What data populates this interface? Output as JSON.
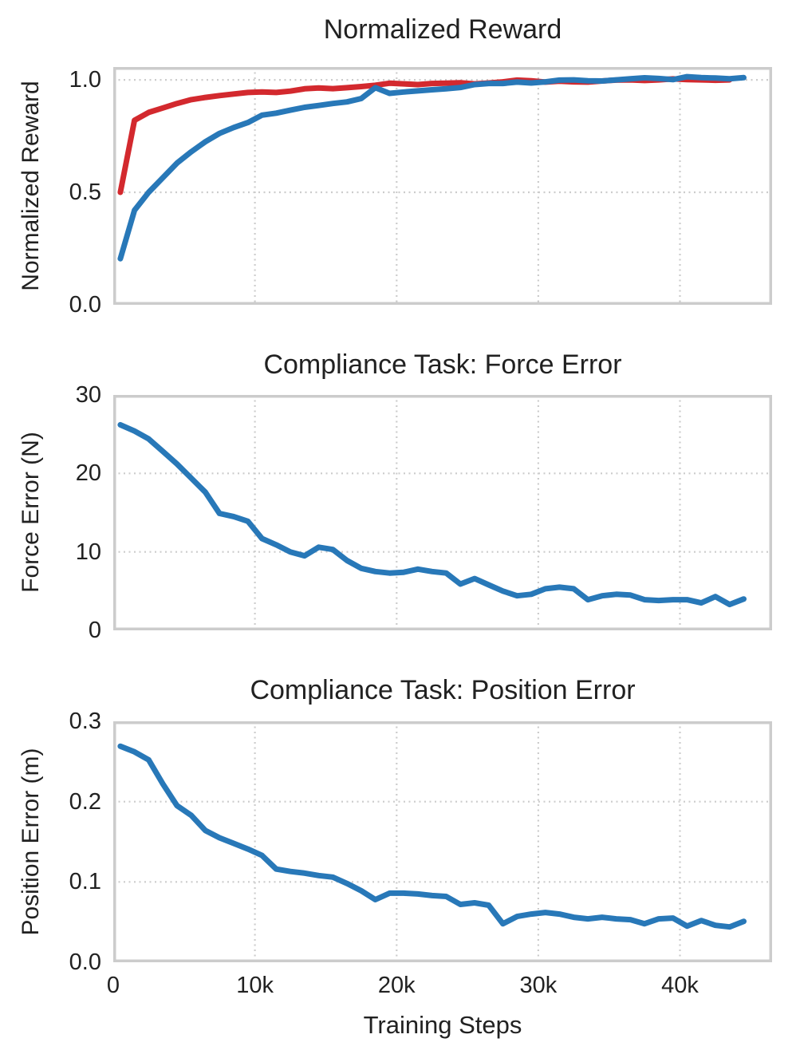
{
  "page": {
    "background": "#ffffff",
    "text_color": "#212121"
  },
  "style": {
    "grid_color": "#cccccc",
    "spine_color": "#cccccc",
    "blue": "#2878b8",
    "red": "#d3292e",
    "line_width": 7
  },
  "x_axis": {
    "label": "Training Steps",
    "xlim": [
      0,
      46500
    ],
    "ticks": [
      {
        "value": 0,
        "label": "0"
      },
      {
        "value": 10000,
        "label": "10k"
      },
      {
        "value": 20000,
        "label": "20k"
      },
      {
        "value": 30000,
        "label": "30k"
      },
      {
        "value": 40000,
        "label": "40k"
      }
    ]
  },
  "chart_data": [
    {
      "type": "line",
      "title": "Normalized Reward",
      "ylabel": "Normalized Reward",
      "xlabel": "",
      "ylim": [
        0,
        1.057
      ],
      "grid": true,
      "legend": "none",
      "yticks": [
        {
          "value": 0.0,
          "label": "0.0"
        },
        {
          "value": 0.5,
          "label": "0.5"
        },
        {
          "value": 1.0,
          "label": "1.0"
        }
      ],
      "series": [
        {
          "name": "red-line",
          "color_key": "red",
          "x_start": 500,
          "x_step": 1000,
          "values": [
            0.5,
            0.82,
            0.855,
            0.875,
            0.895,
            0.912,
            0.922,
            0.93,
            0.937,
            0.944,
            0.946,
            0.944,
            0.95,
            0.96,
            0.964,
            0.961,
            0.965,
            0.97,
            0.976,
            0.985,
            0.982,
            0.979,
            0.984,
            0.985,
            0.987,
            0.982,
            0.986,
            0.991,
            0.999,
            0.996,
            0.99,
            0.994,
            0.991,
            0.99,
            0.995,
            0.999,
            1.0,
            0.997,
            1.0,
            1.004,
            1.001,
            1.0,
            0.998,
            1.0
          ]
        },
        {
          "name": "blue-line",
          "color_key": "blue",
          "x_start": 500,
          "x_step": 1000,
          "values": [
            0.205,
            0.42,
            0.5,
            0.565,
            0.63,
            0.68,
            0.725,
            0.762,
            0.788,
            0.81,
            0.843,
            0.852,
            0.865,
            0.878,
            0.886,
            0.895,
            0.902,
            0.917,
            0.965,
            0.94,
            0.946,
            0.951,
            0.956,
            0.96,
            0.966,
            0.979,
            0.984,
            0.984,
            0.99,
            0.986,
            0.991,
            0.999,
            1.0,
            0.996,
            0.995,
            1.0,
            1.005,
            1.009,
            1.006,
            1.001,
            1.014,
            1.01,
            1.008,
            1.005,
            1.01
          ]
        }
      ]
    },
    {
      "type": "line",
      "title": "Compliance Task: Force Error",
      "ylabel": "Force Error (N)",
      "xlabel": "",
      "ylim": [
        0,
        30
      ],
      "grid": true,
      "legend": "none",
      "yticks": [
        {
          "value": 0,
          "label": "0"
        },
        {
          "value": 10,
          "label": "10"
        },
        {
          "value": 20,
          "label": "20"
        },
        {
          "value": 30,
          "label": "30"
        }
      ],
      "series": [
        {
          "name": "blue-line",
          "color_key": "blue",
          "x_start": 500,
          "x_step": 1000,
          "values": [
            26.2,
            25.4,
            24.4,
            22.8,
            21.2,
            19.4,
            17.6,
            14.9,
            14.5,
            13.9,
            11.7,
            10.9,
            10.0,
            9.5,
            10.6,
            10.3,
            8.9,
            7.9,
            7.5,
            7.3,
            7.4,
            7.8,
            7.5,
            7.3,
            5.9,
            6.6,
            5.8,
            5.0,
            4.4,
            4.6,
            5.3,
            5.5,
            5.3,
            3.9,
            4.4,
            4.6,
            4.5,
            3.9,
            3.8,
            3.9,
            3.9,
            3.5,
            4.3,
            3.3,
            4.0
          ]
        }
      ]
    },
    {
      "type": "line",
      "title": "Compliance Task: Position Error",
      "ylabel": "Position Error (m)",
      "xlabel": "Training Steps",
      "ylim": [
        0,
        0.3
      ],
      "grid": true,
      "legend": "none",
      "yticks": [
        {
          "value": 0.0,
          "label": "0.0"
        },
        {
          "value": 0.1,
          "label": "0.1"
        },
        {
          "value": 0.2,
          "label": "0.2"
        },
        {
          "value": 0.3,
          "label": "0.3"
        }
      ],
      "series": [
        {
          "name": "blue-line",
          "color_key": "blue",
          "x_start": 500,
          "x_step": 1000,
          "values": [
            0.269,
            0.262,
            0.252,
            0.222,
            0.195,
            0.183,
            0.164,
            0.155,
            0.148,
            0.141,
            0.133,
            0.116,
            0.113,
            0.111,
            0.108,
            0.106,
            0.098,
            0.089,
            0.078,
            0.086,
            0.086,
            0.085,
            0.083,
            0.082,
            0.072,
            0.074,
            0.071,
            0.048,
            0.057,
            0.06,
            0.062,
            0.06,
            0.056,
            0.054,
            0.056,
            0.054,
            0.053,
            0.048,
            0.054,
            0.055,
            0.045,
            0.052,
            0.046,
            0.044,
            0.051
          ]
        }
      ]
    }
  ]
}
